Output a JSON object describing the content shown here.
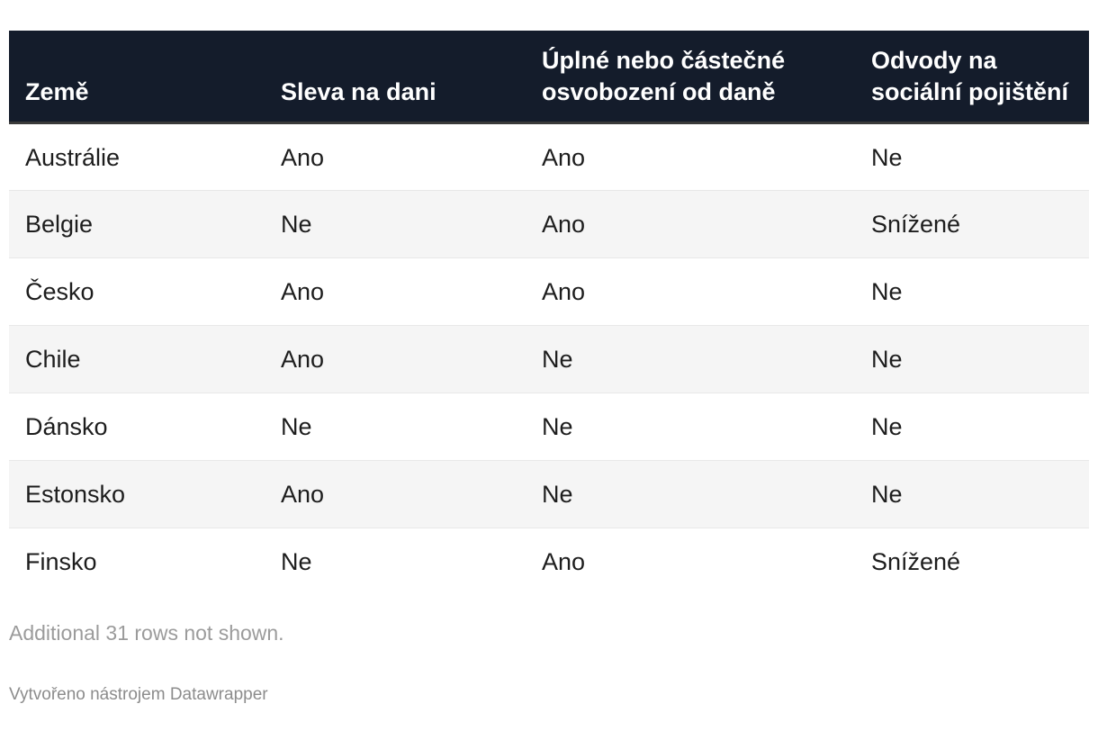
{
  "chart_data": {
    "type": "table",
    "columns": [
      "Země",
      "Sleva na dani",
      "Úplné nebo částečné osvobození od daně",
      "Odvody na sociální pojištění"
    ],
    "rows": [
      [
        "Austrálie",
        "Ano",
        "Ano",
        "Ne"
      ],
      [
        "Belgie",
        "Ne",
        "Ano",
        "Snížené"
      ],
      [
        "Česko",
        "Ano",
        "Ano",
        "Ne"
      ],
      [
        "Chile",
        "Ano",
        "Ne",
        "Ne"
      ],
      [
        "Dánsko",
        "Ne",
        "Ne",
        "Ne"
      ],
      [
        "Estonsko",
        "Ano",
        "Ne",
        "Ne"
      ],
      [
        "Finsko",
        "Ne",
        "Ano",
        "Snížené"
      ]
    ],
    "hidden_rows_count": 31,
    "note": "Additional 31 rows not shown.",
    "attribution": "Vytvořeno nástrojem Datawrapper",
    "legend_position": "none",
    "grid": "row-stripes"
  },
  "colors": {
    "header_bg": "#141c2b",
    "header_text": "#ffffff",
    "header_border": "#3a3a3a",
    "row_stripe": "#f5f5f5",
    "row_border": "#e8e8e8",
    "body_text": "#1d1d1d",
    "note_text": "#9b9b9b",
    "attribution_text": "#8c8c8c"
  }
}
